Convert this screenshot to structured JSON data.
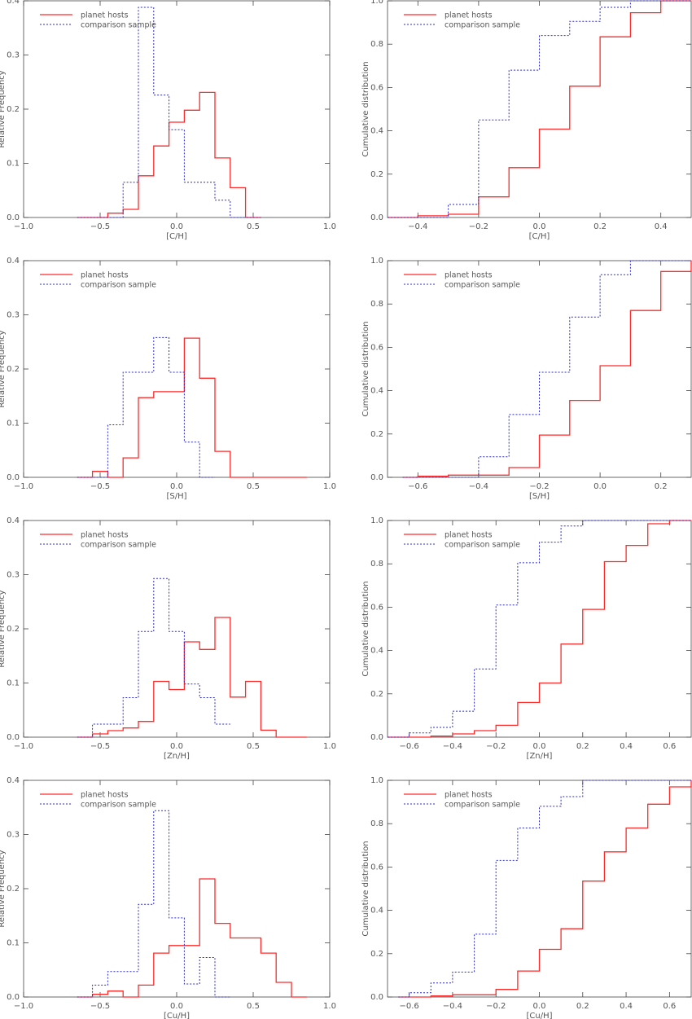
{
  "legend": {
    "hosts": "planet hosts",
    "comparison": "comparison sample"
  },
  "colors": {
    "hosts": "#ff2a2a",
    "comparison": "#2a2ad6",
    "axis": "#444444"
  },
  "chart_data": [
    {
      "type": "step-histogram",
      "xlabel": "[C/H]",
      "ylabel": "Relative Frequency",
      "xlim": [
        -1.0,
        1.0
      ],
      "ylim": [
        0,
        0.4
      ],
      "xticks": [
        "−1.0",
        "−0.5",
        "0.0",
        "0.5",
        "1.0"
      ],
      "yticks": [
        "0.0",
        "0.1",
        "0.2",
        "0.3",
        "0.4"
      ],
      "grid": false,
      "legend_position": "top-left",
      "series": [
        {
          "name": "planet hosts",
          "edges": [
            -0.65,
            -0.55,
            -0.45,
            -0.35,
            -0.25,
            -0.15,
            -0.05,
            0.05,
            0.15,
            0.25,
            0.35,
            0.45,
            0.55
          ],
          "values": [
            0,
            0,
            0.008,
            0.015,
            0.077,
            0.132,
            0.176,
            0.198,
            0.231,
            0.11,
            0.055,
            0
          ]
        },
        {
          "name": "comparison sample",
          "edges": [
            -0.65,
            -0.55,
            -0.45,
            -0.35,
            -0.25,
            -0.15,
            -0.05,
            0.05,
            0.15,
            0.25,
            0.35,
            0.45,
            0.55
          ],
          "values": [
            0,
            0,
            0,
            0.065,
            0.388,
            0.226,
            0.162,
            0.065,
            0.065,
            0.032,
            0,
            0
          ]
        }
      ]
    },
    {
      "type": "cumulative-step",
      "xlabel": "[C/H]",
      "ylabel": "Cumulative distribution",
      "xlim": [
        -0.5,
        0.5
      ],
      "ylim": [
        0,
        1.0
      ],
      "xticks": [
        "−0.4",
        "−0.2",
        "0.0",
        "0.2",
        "0.4"
      ],
      "yticks": [
        "0.0",
        "0.2",
        "0.4",
        "0.6",
        "0.8",
        "1.0"
      ],
      "grid": false,
      "legend_position": "top-left",
      "series": [
        {
          "name": "planet hosts",
          "x": [
            -0.5,
            -0.4,
            -0.3,
            -0.2,
            -0.1,
            0.0,
            0.1,
            0.2,
            0.3,
            0.4,
            0.5
          ],
          "values": [
            0,
            0.008,
            0.015,
            0.095,
            0.23,
            0.408,
            0.606,
            0.834,
            0.945,
            1.0,
            1.0
          ]
        },
        {
          "name": "comparison sample",
          "x": [
            -0.5,
            -0.4,
            -0.3,
            -0.2,
            -0.1,
            0.0,
            0.1,
            0.2,
            0.3,
            0.4,
            0.5
          ],
          "values": [
            0,
            0,
            0.06,
            0.45,
            0.68,
            0.84,
            0.905,
            0.97,
            1.0,
            1.0,
            1.0
          ]
        }
      ]
    },
    {
      "type": "step-histogram",
      "xlabel": "[S/H]",
      "ylabel": "Relative Frequency",
      "xlim": [
        -1.0,
        1.0
      ],
      "ylim": [
        0,
        0.4
      ],
      "xticks": [
        "−1.0",
        "−0.5",
        "0.0",
        "0.5",
        "1.0"
      ],
      "yticks": [
        "0.0",
        "0.1",
        "0.2",
        "0.3",
        "0.4"
      ],
      "grid": false,
      "legend_position": "top-left",
      "series": [
        {
          "name": "planet hosts",
          "edges": [
            -0.65,
            -0.55,
            -0.45,
            -0.35,
            -0.25,
            -0.15,
            -0.05,
            0.05,
            0.15,
            0.25,
            0.35,
            0.45,
            0.55,
            0.65,
            0.75,
            0.85
          ],
          "values": [
            0,
            0.011,
            0,
            0.036,
            0.147,
            0.158,
            0.158,
            0.257,
            0.183,
            0.048,
            0,
            0,
            0,
            0,
            0
          ]
        },
        {
          "name": "comparison sample",
          "edges": [
            -0.65,
            -0.55,
            -0.45,
            -0.35,
            -0.25,
            -0.15,
            -0.05,
            0.05,
            0.15,
            0.25
          ],
          "values": [
            0,
            0,
            0.097,
            0.194,
            0.194,
            0.258,
            0.194,
            0.065,
            0,
            0
          ]
        }
      ]
    },
    {
      "type": "cumulative-step",
      "xlabel": "[S/H]",
      "ylabel": "Cumulative distribution",
      "xlim": [
        -0.7,
        0.3
      ],
      "ylim": [
        0,
        1.0
      ],
      "xticks": [
        "−0.6",
        "−0.4",
        "−0.2",
        "0.0",
        "0.2"
      ],
      "yticks": [
        "0.0",
        "0.2",
        "0.4",
        "0.6",
        "0.8",
        "1.0"
      ],
      "grid": false,
      "legend_position": "top-left",
      "series": [
        {
          "name": "planet hosts",
          "x": [
            -0.65,
            -0.6,
            -0.5,
            -0.4,
            -0.3,
            -0.2,
            -0.1,
            0.0,
            0.1,
            0.2,
            0.3
          ],
          "values": [
            0,
            0.005,
            0.01,
            0.01,
            0.045,
            0.195,
            0.355,
            0.515,
            0.77,
            0.95,
            1.0
          ]
        },
        {
          "name": "comparison sample",
          "x": [
            -0.65,
            -0.6,
            -0.5,
            -0.4,
            -0.3,
            -0.2,
            -0.1,
            0.0,
            0.1,
            0.2,
            0.3
          ],
          "values": [
            0,
            0,
            0,
            0.095,
            0.29,
            0.485,
            0.74,
            0.935,
            1.0,
            1.0,
            1.0
          ]
        }
      ]
    },
    {
      "type": "step-histogram",
      "xlabel": "[Zn/H]",
      "ylabel": "Relative Frequency",
      "xlim": [
        -1.0,
        1.0
      ],
      "ylim": [
        0,
        0.4
      ],
      "xticks": [
        "−1.0",
        "−0.5",
        "0.0",
        "0.5",
        "1.0"
      ],
      "yticks": [
        "0.0",
        "0.1",
        "0.2",
        "0.3",
        "0.4"
      ],
      "grid": false,
      "legend_position": "top-left",
      "series": [
        {
          "name": "planet hosts",
          "edges": [
            -0.65,
            -0.55,
            -0.45,
            -0.35,
            -0.25,
            -0.15,
            -0.05,
            0.05,
            0.15,
            0.25,
            0.35,
            0.45,
            0.55,
            0.65,
            0.75,
            0.85
          ],
          "values": [
            0,
            0.006,
            0.012,
            0.017,
            0.029,
            0.103,
            0.088,
            0.176,
            0.162,
            0.221,
            0.074,
            0.103,
            0.013,
            0,
            0
          ]
        },
        {
          "name": "comparison sample",
          "edges": [
            -0.65,
            -0.55,
            -0.45,
            -0.35,
            -0.25,
            -0.15,
            -0.05,
            0.05,
            0.15,
            0.25,
            0.35
          ],
          "values": [
            0,
            0.024,
            0.024,
            0.073,
            0.195,
            0.293,
            0.195,
            0.098,
            0.073,
            0.024
          ]
        }
      ]
    },
    {
      "type": "cumulative-step",
      "xlabel": "[Zn/H]",
      "ylabel": "Cumulative distribution",
      "xlim": [
        -0.7,
        0.7
      ],
      "ylim": [
        0,
        1.0
      ],
      "xticks": [
        "−0.6",
        "−0.4",
        "−0.2",
        "0.0",
        "0.2",
        "0.4",
        "0.6"
      ],
      "yticks": [
        "0.0",
        "0.2",
        "0.4",
        "0.6",
        "0.8",
        "1.0"
      ],
      "grid": false,
      "legend_position": "top-left",
      "series": [
        {
          "name": "planet hosts",
          "x": [
            -0.7,
            -0.6,
            -0.5,
            -0.4,
            -0.3,
            -0.2,
            -0.1,
            0.0,
            0.1,
            0.2,
            0.3,
            0.4,
            0.5,
            0.6,
            0.7
          ],
          "values": [
            0,
            0,
            0.005,
            0.015,
            0.03,
            0.055,
            0.16,
            0.25,
            0.43,
            0.59,
            0.81,
            0.885,
            0.985,
            1.0,
            1.0
          ]
        },
        {
          "name": "comparison sample",
          "x": [
            -0.7,
            -0.6,
            -0.5,
            -0.4,
            -0.3,
            -0.2,
            -0.1,
            0.0,
            0.1,
            0.2,
            0.3,
            0.4,
            0.5,
            0.6,
            0.7
          ],
          "values": [
            0,
            0.02,
            0.045,
            0.12,
            0.315,
            0.61,
            0.805,
            0.9,
            0.975,
            1.0,
            1.0,
            1.0,
            1.0,
            1.0,
            1.0
          ]
        }
      ]
    },
    {
      "type": "step-histogram",
      "xlabel": "[Cu/H]",
      "ylabel": "Relative Frequency",
      "xlim": [
        -1.0,
        1.0
      ],
      "ylim": [
        0,
        0.4
      ],
      "xticks": [
        "−1.0",
        "−0.5",
        "0.0",
        "0.5",
        "1.0"
      ],
      "yticks": [
        "0.0",
        "0.1",
        "0.2",
        "0.3",
        "0.4"
      ],
      "grid": false,
      "legend_position": "top-left",
      "series": [
        {
          "name": "planet hosts",
          "edges": [
            -0.65,
            -0.55,
            -0.45,
            -0.35,
            -0.25,
            -0.15,
            -0.05,
            0.05,
            0.15,
            0.25,
            0.35,
            0.45,
            0.55,
            0.65,
            0.75,
            0.85
          ],
          "values": [
            0,
            0.005,
            0.011,
            0,
            0.022,
            0.081,
            0.095,
            0.095,
            0.218,
            0.136,
            0.109,
            0.109,
            0.081,
            0.027,
            0
          ]
        },
        {
          "name": "comparison sample",
          "edges": [
            -0.65,
            -0.55,
            -0.45,
            -0.35,
            -0.25,
            -0.15,
            -0.05,
            0.05,
            0.15,
            0.25,
            0.35
          ],
          "values": [
            0,
            0.022,
            0.047,
            0.047,
            0.171,
            0.344,
            0.146,
            0.024,
            0.073,
            0
          ]
        }
      ]
    },
    {
      "type": "cumulative-step",
      "xlabel": "[Cu/H]",
      "ylabel": "Cumulative distribution",
      "xlim": [
        -0.7,
        0.7
      ],
      "ylim": [
        0,
        1.0
      ],
      "xticks": [
        "−0.6",
        "−0.4",
        "−0.2",
        "0.0",
        "0.2",
        "0.4",
        "0.6"
      ],
      "yticks": [
        "0.0",
        "0.2",
        "0.4",
        "0.6",
        "0.8",
        "1.0"
      ],
      "grid": false,
      "legend_position": "top-left",
      "series": [
        {
          "name": "planet hosts",
          "x": [
            -0.65,
            -0.6,
            -0.5,
            -0.4,
            -0.3,
            -0.2,
            -0.1,
            0.0,
            0.1,
            0.2,
            0.3,
            0.4,
            0.5,
            0.6,
            0.7
          ],
          "values": [
            0,
            0,
            0.005,
            0.01,
            0.01,
            0.035,
            0.12,
            0.22,
            0.315,
            0.535,
            0.67,
            0.78,
            0.89,
            0.97,
            1.0
          ]
        },
        {
          "name": "comparison sample",
          "x": [
            -0.65,
            -0.6,
            -0.5,
            -0.4,
            -0.3,
            -0.2,
            -0.1,
            0.0,
            0.1,
            0.2,
            0.3,
            0.4,
            0.5,
            0.6,
            0.7
          ],
          "values": [
            0,
            0.02,
            0.065,
            0.115,
            0.29,
            0.63,
            0.78,
            0.88,
            0.925,
            1.0,
            1.0,
            1.0,
            1.0,
            1.0,
            1.0
          ]
        }
      ]
    }
  ]
}
